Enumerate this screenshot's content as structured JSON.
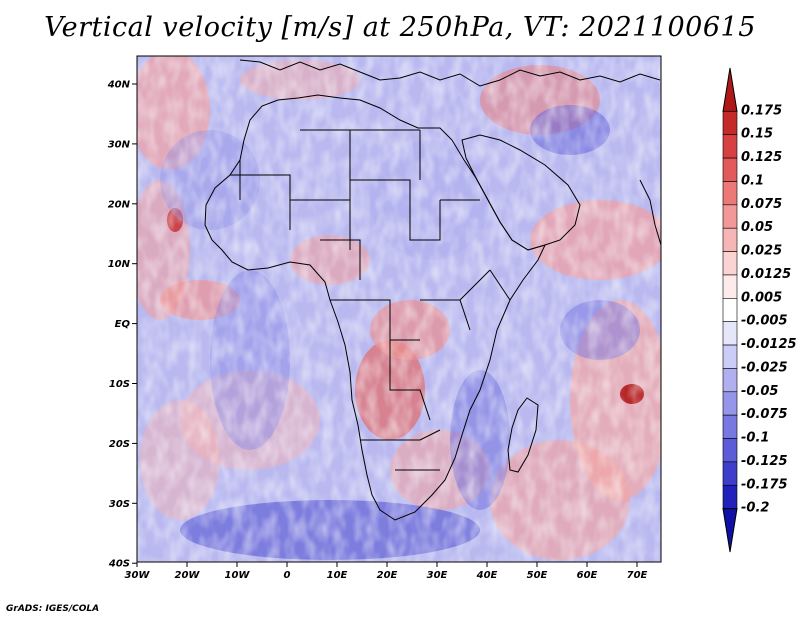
{
  "title": "Vertical velocity [m/s] at 250hPa, VT: 2021100615",
  "credit": "GrADS: IGES/COLA",
  "map": {
    "lat_labels": [
      "40N",
      "30N",
      "20N",
      "10N",
      "EQ",
      "10S",
      "20S",
      "30S",
      "40S"
    ],
    "lon_labels": [
      "30W",
      "20W",
      "10W",
      "0",
      "10E",
      "20E",
      "30E",
      "40E",
      "50E",
      "60E",
      "70E"
    ],
    "lat_range": [
      -40,
      45
    ],
    "lon_range": [
      -30,
      75
    ]
  },
  "colorbar": {
    "levels": [
      "0.175",
      "0.15",
      "0.125",
      "0.1",
      "0.075",
      "0.05",
      "0.025",
      "0.0125",
      "0.005",
      "-0.005",
      "-0.0125",
      "-0.025",
      "-0.05",
      "-0.075",
      "-0.1",
      "-0.125",
      "-0.175",
      "-0.2"
    ],
    "colors": [
      "#b01818",
      "#c52a2a",
      "#d64141",
      "#e35a5a",
      "#ec7878",
      "#f29898",
      "#f7b6b6",
      "#fbd3d3",
      "#fdeaea",
      "#ffffff",
      "#e6e6fb",
      "#cccdf6",
      "#b0b0f0",
      "#9595ea",
      "#7878e2",
      "#5c5cd8",
      "#3e3ecb",
      "#2222bb",
      "#1010a8"
    ]
  }
}
